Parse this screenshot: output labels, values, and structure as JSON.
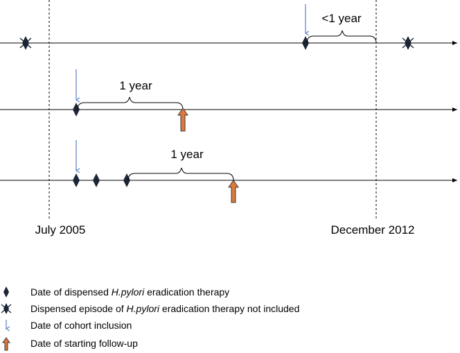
{
  "timeline": {
    "start_label": "July 2005",
    "end_label": "December 2012"
  },
  "rows": [
    {
      "interval_label": "<1 year"
    },
    {
      "interval_label": "1 year"
    },
    {
      "interval_label": "1 year"
    }
  ],
  "legend": [
    {
      "icon": "diamond-icon",
      "text_before": "Date of dispensed ",
      "text_italic": "H.pylori",
      "text_after": " eradication therapy"
    },
    {
      "icon": "crossed-diamond-icon",
      "text_before": "Dispensed episode of ",
      "text_italic": "H.pylori",
      "text_after": " eradication therapy not included"
    },
    {
      "icon": "down-arrow-icon",
      "text_before": "Date of cohort inclusion",
      "text_italic": "",
      "text_after": ""
    },
    {
      "icon": "up-arrow-icon",
      "text_before": "Date of starting follow-up",
      "text_italic": "",
      "text_after": ""
    }
  ],
  "colors": {
    "line": "#000000",
    "diamond": "#1b2535",
    "inclusion_arrow": "#5b7fc0",
    "followup_arrow_fill": "#e07a3a",
    "followup_arrow_stroke": "#3a3a3a"
  }
}
